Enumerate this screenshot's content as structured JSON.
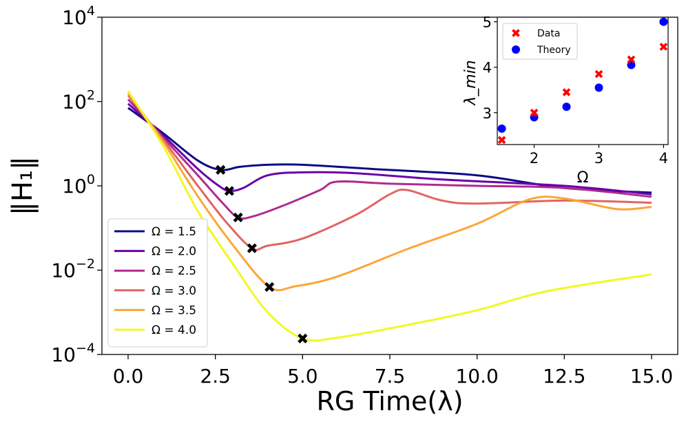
{
  "chart_data": [
    {
      "type": "line",
      "xlabel": "RG Time(λ)",
      "ylabel": "‖H₁‖",
      "xlim": [
        -0.75,
        15.75
      ],
      "ylim_log10": [
        -4,
        4
      ],
      "yscale": "log",
      "x_ticks": [
        0.0,
        2.5,
        5.0,
        7.5,
        10.0,
        12.5,
        15.0
      ],
      "x_tick_labels": [
        "0.0",
        "2.5",
        "5.0",
        "7.5",
        "10.0",
        "12.5",
        "15.0"
      ],
      "y_ticks_log10": [
        -4,
        -2,
        0,
        2,
        4
      ],
      "y_tick_labels": [
        {
          "base": "10",
          "exp": "−4"
        },
        {
          "base": "10",
          "exp": "−2"
        },
        {
          "base": "10",
          "exp": "0"
        },
        {
          "base": "10",
          "exp": "2"
        },
        {
          "base": "10",
          "exp": "4"
        }
      ],
      "legend_position": "lower-left",
      "series": [
        {
          "name": "Ω = 1.5",
          "color": "#0d0887",
          "points": [
            [
              0,
              1.85
            ],
            [
              1,
              1.25
            ],
            [
              2,
              0.6
            ],
            [
              2.65,
              0.38
            ],
            [
              3.2,
              0.45
            ],
            [
              4,
              0.5
            ],
            [
              5,
              0.5
            ],
            [
              7,
              0.4
            ],
            [
              10,
              0.25
            ],
            [
              12.5,
              -0.05
            ],
            [
              15,
              -0.16
            ]
          ],
          "min": [
            2.65,
            0.38
          ]
        },
        {
          "name": "Ω = 2.0",
          "color": "#6a00a8",
          "points": [
            [
              0,
              1.95
            ],
            [
              1,
              1.2
            ],
            [
              2,
              0.4
            ],
            [
              2.6,
              0.0
            ],
            [
              2.9,
              -0.12
            ],
            [
              3.3,
              -0.05
            ],
            [
              4,
              0.25
            ],
            [
              5,
              0.32
            ],
            [
              6.5,
              0.3
            ],
            [
              9,
              0.15
            ],
            [
              12.5,
              0.0
            ],
            [
              15,
              -0.2
            ]
          ],
          "min": [
            2.9,
            -0.12
          ]
        },
        {
          "name": "Ω = 2.5",
          "color": "#b12a90",
          "points": [
            [
              0,
              2.05
            ],
            [
              1,
              1.15
            ],
            [
              2,
              0.25
            ],
            [
              2.7,
              -0.4
            ],
            [
              3.15,
              -0.75
            ],
            [
              3.6,
              -0.72
            ],
            [
              4.5,
              -0.45
            ],
            [
              5.5,
              -0.1
            ],
            [
              6,
              0.1
            ],
            [
              7.5,
              0.05
            ],
            [
              10,
              0.0
            ],
            [
              12.5,
              -0.05
            ],
            [
              15,
              -0.26
            ]
          ],
          "min": [
            3.15,
            -0.75
          ]
        },
        {
          "name": "Ω = 3.0",
          "color": "#e16462",
          "points": [
            [
              0,
              2.15
            ],
            [
              1,
              1.1
            ],
            [
              2,
              0.0
            ],
            [
              2.8,
              -0.85
            ],
            [
              3.55,
              -1.48
            ],
            [
              4,
              -1.42
            ],
            [
              5,
              -1.25
            ],
            [
              6.5,
              -0.7
            ],
            [
              7.5,
              -0.2
            ],
            [
              8,
              -0.1
            ],
            [
              9,
              -0.35
            ],
            [
              10,
              -0.42
            ],
            [
              12.5,
              -0.35
            ],
            [
              15,
              -0.4
            ]
          ],
          "min": [
            3.55,
            -1.48
          ]
        },
        {
          "name": "Ω = 3.5",
          "color": "#fca636",
          "points": [
            [
              0,
              2.2
            ],
            [
              1,
              1.05
            ],
            [
              2,
              -0.25
            ],
            [
              3,
              -1.4
            ],
            [
              4.05,
              -2.4
            ],
            [
              4.8,
              -2.38
            ],
            [
              6,
              -2.15
            ],
            [
              8,
              -1.5
            ],
            [
              10,
              -0.9
            ],
            [
              11.5,
              -0.32
            ],
            [
              12.5,
              -0.3
            ],
            [
              14,
              -0.55
            ],
            [
              15,
              -0.5
            ]
          ],
          "min": [
            4.05,
            -2.4
          ]
        },
        {
          "name": "Ω = 4.0",
          "color": "#f0f921",
          "points": [
            [
              0,
              2.25
            ],
            [
              1,
              0.95
            ],
            [
              2,
              -0.6
            ],
            [
              3,
              -1.85
            ],
            [
              4,
              -3.0
            ],
            [
              5,
              -3.62
            ],
            [
              6,
              -3.6
            ],
            [
              8,
              -3.3
            ],
            [
              10,
              -2.95
            ],
            [
              12,
              -2.5
            ],
            [
              15,
              -2.1
            ]
          ],
          "min": [
            5.0,
            -3.62
          ]
        }
      ]
    },
    {
      "type": "scatter",
      "xlabel": "Ω",
      "ylabel": "λ_min",
      "xlim": [
        1.43,
        4.07
      ],
      "ylim": [
        2.3,
        5.1
      ],
      "x_ticks": [
        2,
        3,
        4
      ],
      "x_tick_labels": [
        "2",
        "3",
        "4"
      ],
      "y_ticks": [
        3,
        4,
        5
      ],
      "y_tick_labels": [
        "3",
        "4",
        "5"
      ],
      "legend_position": "top-left",
      "series": [
        {
          "name": "Data",
          "marker": "x",
          "color": "#ff0000",
          "x": [
            1.5,
            2.0,
            2.5,
            3.0,
            3.5,
            4.0
          ],
          "y": [
            2.4,
            3.0,
            3.45,
            3.85,
            4.17,
            4.45
          ]
        },
        {
          "name": "Theory",
          "marker": "o",
          "color": "#0000ff",
          "x": [
            1.5,
            2.0,
            2.5,
            3.0,
            3.5,
            4.0
          ],
          "y": [
            2.65,
            2.9,
            3.13,
            3.55,
            4.05,
            5.0
          ]
        }
      ]
    }
  ]
}
